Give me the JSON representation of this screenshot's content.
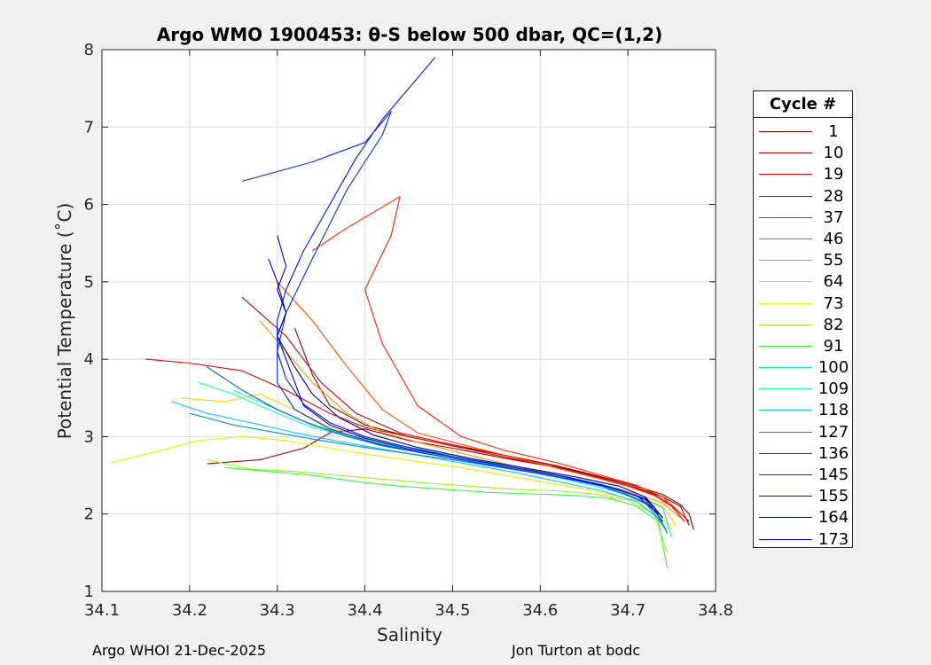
{
  "chart_data": {
    "type": "line",
    "title": "Argo WMO 1900453: θ-S below 500 dbar,  QC=(1,2)",
    "xlabel": "Salinity",
    "ylabel": "Potential Temperature (˚C)",
    "xlim": [
      34.1,
      34.8
    ],
    "ylim": [
      1,
      8
    ],
    "xticks": [
      "34.1",
      "34.2",
      "34.3",
      "34.4",
      "34.5",
      "34.6",
      "34.7",
      "34.8"
    ],
    "yticks": [
      "1",
      "2",
      "3",
      "4",
      "5",
      "6",
      "7",
      "8"
    ],
    "grid": true,
    "legend_title": "Cycle #",
    "legend_position": "right",
    "series": [
      {
        "name": "1",
        "color": "#800000",
        "x": [
          34.32,
          34.34,
          34.36,
          34.4,
          34.45,
          34.5,
          34.56,
          34.62,
          34.67,
          34.71,
          34.74,
          34.76,
          34.77,
          34.775
        ],
        "y": [
          4.4,
          3.8,
          3.4,
          3.15,
          3.0,
          2.88,
          2.76,
          2.62,
          2.48,
          2.36,
          2.25,
          2.12,
          2.0,
          1.8
        ]
      },
      {
        "name": "10",
        "color": "#a00000",
        "x": [
          34.22,
          34.28,
          34.33,
          34.36,
          34.4,
          34.45,
          34.5,
          34.56,
          34.62,
          34.67,
          34.71,
          34.74,
          34.76,
          34.77
        ],
        "y": [
          2.65,
          2.7,
          2.85,
          3.05,
          3.1,
          2.95,
          2.85,
          2.72,
          2.6,
          2.46,
          2.34,
          2.22,
          2.1,
          1.85
        ]
      },
      {
        "name": "19",
        "color": "#c00000",
        "x": [
          34.26,
          34.31,
          34.35,
          34.39,
          34.44,
          34.49,
          34.55,
          34.61,
          34.66,
          34.7,
          34.73,
          34.75,
          34.77
        ],
        "y": [
          4.8,
          4.3,
          3.7,
          3.3,
          3.05,
          2.92,
          2.78,
          2.64,
          2.5,
          2.37,
          2.25,
          2.12,
          1.9
        ]
      },
      {
        "name": "28",
        "color": "#e00000",
        "x": [
          34.15,
          34.2,
          34.26,
          34.31,
          34.36,
          34.4,
          34.45,
          34.5,
          34.55,
          34.61,
          34.66,
          34.7,
          34.73,
          34.75,
          34.765
        ],
        "y": [
          4.0,
          3.95,
          3.85,
          3.6,
          3.3,
          3.12,
          3.0,
          2.88,
          2.76,
          2.62,
          2.48,
          2.36,
          2.24,
          2.1,
          1.9
        ]
      },
      {
        "name": "37",
        "color": "#ff2000",
        "x": [
          34.34,
          34.38,
          34.41,
          34.44,
          34.43,
          34.4,
          34.42,
          34.46,
          34.51,
          34.56,
          34.62,
          34.67,
          34.71,
          34.74,
          34.76
        ],
        "y": [
          5.4,
          5.7,
          5.9,
          6.1,
          5.6,
          4.9,
          4.2,
          3.4,
          3.0,
          2.82,
          2.66,
          2.5,
          2.37,
          2.22,
          2.0
        ]
      },
      {
        "name": "46",
        "color": "#ff5000",
        "x": [
          34.3,
          34.34,
          34.38,
          34.42,
          34.46,
          34.51,
          34.56,
          34.61,
          34.66,
          34.7,
          34.73,
          34.75,
          34.765
        ],
        "y": [
          5.0,
          4.5,
          3.9,
          3.35,
          3.05,
          2.9,
          2.76,
          2.62,
          2.48,
          2.36,
          2.24,
          2.12,
          1.95
        ]
      },
      {
        "name": "55",
        "color": "#ff9000",
        "x": [
          34.28,
          34.31,
          34.34,
          34.38,
          34.42,
          34.47,
          34.52,
          34.57,
          34.62,
          34.67,
          34.71,
          34.74,
          34.76
        ],
        "y": [
          4.5,
          4.1,
          3.7,
          3.3,
          3.05,
          2.9,
          2.76,
          2.62,
          2.5,
          2.38,
          2.26,
          2.14,
          1.95
        ]
      },
      {
        "name": "64",
        "color": "#ffd000",
        "x": [
          34.19,
          34.24,
          34.28,
          34.32,
          34.36,
          34.41,
          34.46,
          34.51,
          34.57,
          34.62,
          34.67,
          34.71,
          34.74,
          34.755
        ],
        "y": [
          3.5,
          3.45,
          3.55,
          3.35,
          3.12,
          2.96,
          2.84,
          2.72,
          2.6,
          2.48,
          2.36,
          2.24,
          2.1,
          1.85
        ]
      },
      {
        "name": "73",
        "color": "#e8f000",
        "x": [
          34.11,
          34.16,
          34.21,
          34.26,
          34.31,
          34.36,
          34.41,
          34.46,
          34.51,
          34.56,
          34.61,
          34.66,
          34.7,
          34.73,
          34.75
        ],
        "y": [
          2.66,
          2.8,
          2.95,
          3.0,
          2.95,
          2.85,
          2.76,
          2.68,
          2.6,
          2.5,
          2.4,
          2.3,
          2.2,
          2.05,
          1.8
        ]
      },
      {
        "name": "82",
        "color": "#a0f020",
        "x": [
          34.22,
          34.27,
          34.32,
          34.37,
          34.42,
          34.47,
          34.52,
          34.57,
          34.62,
          34.66,
          34.7,
          34.73,
          34.745
        ],
        "y": [
          2.7,
          2.58,
          2.55,
          2.5,
          2.45,
          2.4,
          2.36,
          2.32,
          2.3,
          2.26,
          2.18,
          2.0,
          1.5
        ]
      },
      {
        "name": "91",
        "color": "#40f040",
        "x": [
          34.24,
          34.29,
          34.34,
          34.39,
          34.44,
          34.49,
          34.54,
          34.59,
          34.64,
          34.68,
          34.71,
          34.735,
          34.745
        ],
        "y": [
          2.6,
          2.55,
          2.5,
          2.42,
          2.36,
          2.32,
          2.28,
          2.26,
          2.24,
          2.2,
          2.1,
          1.9,
          1.3
        ]
      },
      {
        "name": "100",
        "color": "#20f0a0",
        "x": [
          34.25,
          34.29,
          34.33,
          34.37,
          34.42,
          34.47,
          34.52,
          34.57,
          34.62,
          34.67,
          34.71,
          34.74,
          34.75
        ],
        "y": [
          3.6,
          3.4,
          3.2,
          3.05,
          2.92,
          2.82,
          2.72,
          2.6,
          2.48,
          2.36,
          2.24,
          2.08,
          1.7
        ]
      },
      {
        "name": "109",
        "color": "#20f0e0",
        "x": [
          34.21,
          34.25,
          34.29,
          34.34,
          34.39,
          34.44,
          34.49,
          34.54,
          34.59,
          34.64,
          34.69,
          34.72,
          34.745
        ],
        "y": [
          3.7,
          3.55,
          3.35,
          3.12,
          2.98,
          2.86,
          2.76,
          2.65,
          2.54,
          2.42,
          2.28,
          2.14,
          1.8
        ]
      },
      {
        "name": "118",
        "color": "#10c0f0",
        "x": [
          34.18,
          34.22,
          34.27,
          34.32,
          34.37,
          34.42,
          34.47,
          34.52,
          34.57,
          34.62,
          34.67,
          34.71,
          34.74
        ],
        "y": [
          3.45,
          3.3,
          3.18,
          3.05,
          2.94,
          2.84,
          2.74,
          2.64,
          2.54,
          2.42,
          2.3,
          2.16,
          1.9
        ]
      },
      {
        "name": "127",
        "color": "#0090d0",
        "x": [
          34.2,
          34.25,
          34.3,
          34.35,
          34.4,
          34.45,
          34.5,
          34.55,
          34.6,
          34.65,
          34.69,
          34.72,
          34.74
        ],
        "y": [
          3.3,
          3.15,
          3.05,
          2.95,
          2.86,
          2.78,
          2.7,
          2.61,
          2.52,
          2.42,
          2.3,
          2.15,
          1.85
        ]
      },
      {
        "name": "136",
        "color": "#0060c8",
        "x": [
          34.22,
          34.26,
          34.3,
          34.34,
          34.38,
          34.42,
          34.47,
          34.52,
          34.57,
          34.62,
          34.67,
          34.7,
          34.73,
          34.745
        ],
        "y": [
          3.9,
          3.6,
          3.35,
          3.15,
          3.0,
          2.88,
          2.78,
          2.68,
          2.58,
          2.48,
          2.36,
          2.24,
          2.08,
          1.75
        ]
      },
      {
        "name": "145",
        "color": "#0030e0",
        "x": [
          34.26,
          34.34,
          34.4,
          34.43,
          34.42,
          34.38,
          34.34,
          34.31,
          34.3,
          34.3,
          34.32,
          34.36,
          34.41,
          34.46,
          34.52,
          34.58,
          34.64,
          34.69,
          34.72,
          34.74
        ],
        "y": [
          6.3,
          6.55,
          6.8,
          7.2,
          6.9,
          6.2,
          5.3,
          4.6,
          4.1,
          3.7,
          3.35,
          3.1,
          2.92,
          2.8,
          2.68,
          2.56,
          2.44,
          2.32,
          2.18,
          1.9
        ]
      },
      {
        "name": "155",
        "color": "#0000c0",
        "x": [
          34.29,
          34.3,
          34.31,
          34.3,
          34.31,
          34.32,
          34.33,
          34.36,
          34.4,
          34.45,
          34.51,
          34.57,
          34.63,
          34.68,
          34.72,
          34.74
        ],
        "y": [
          5.3,
          5.0,
          4.6,
          4.3,
          4.0,
          3.7,
          3.4,
          3.15,
          2.98,
          2.84,
          2.72,
          2.6,
          2.48,
          2.35,
          2.2,
          1.95
        ]
      },
      {
        "name": "164",
        "color": "#000090",
        "x": [
          34.3,
          34.31,
          34.3,
          34.31,
          34.3,
          34.32,
          34.34,
          34.37,
          34.41,
          34.46,
          34.52,
          34.58,
          34.64,
          34.69,
          34.72,
          34.74
        ],
        "y": [
          5.6,
          5.2,
          4.9,
          4.6,
          4.3,
          3.9,
          3.55,
          3.25,
          3.02,
          2.86,
          2.72,
          2.6,
          2.48,
          2.36,
          2.22,
          1.95
        ]
      },
      {
        "name": "173",
        "color": "#0010f0",
        "x": [
          34.48,
          34.45,
          34.42,
          34.39,
          34.36,
          34.33,
          34.31,
          34.3,
          34.3,
          34.31,
          34.33,
          34.36,
          34.4,
          34.45,
          34.5,
          34.56,
          34.62,
          34.67,
          34.71,
          34.735
        ],
        "y": [
          7.9,
          7.5,
          7.1,
          6.6,
          6.0,
          5.4,
          4.9,
          4.5,
          4.1,
          3.75,
          3.42,
          3.18,
          3.0,
          2.86,
          2.74,
          2.62,
          2.5,
          2.38,
          2.24,
          2.0
        ]
      }
    ]
  },
  "footer": {
    "left": "Argo WHOI 21-Dec-2025",
    "right": "Jon Turton at bodc"
  }
}
